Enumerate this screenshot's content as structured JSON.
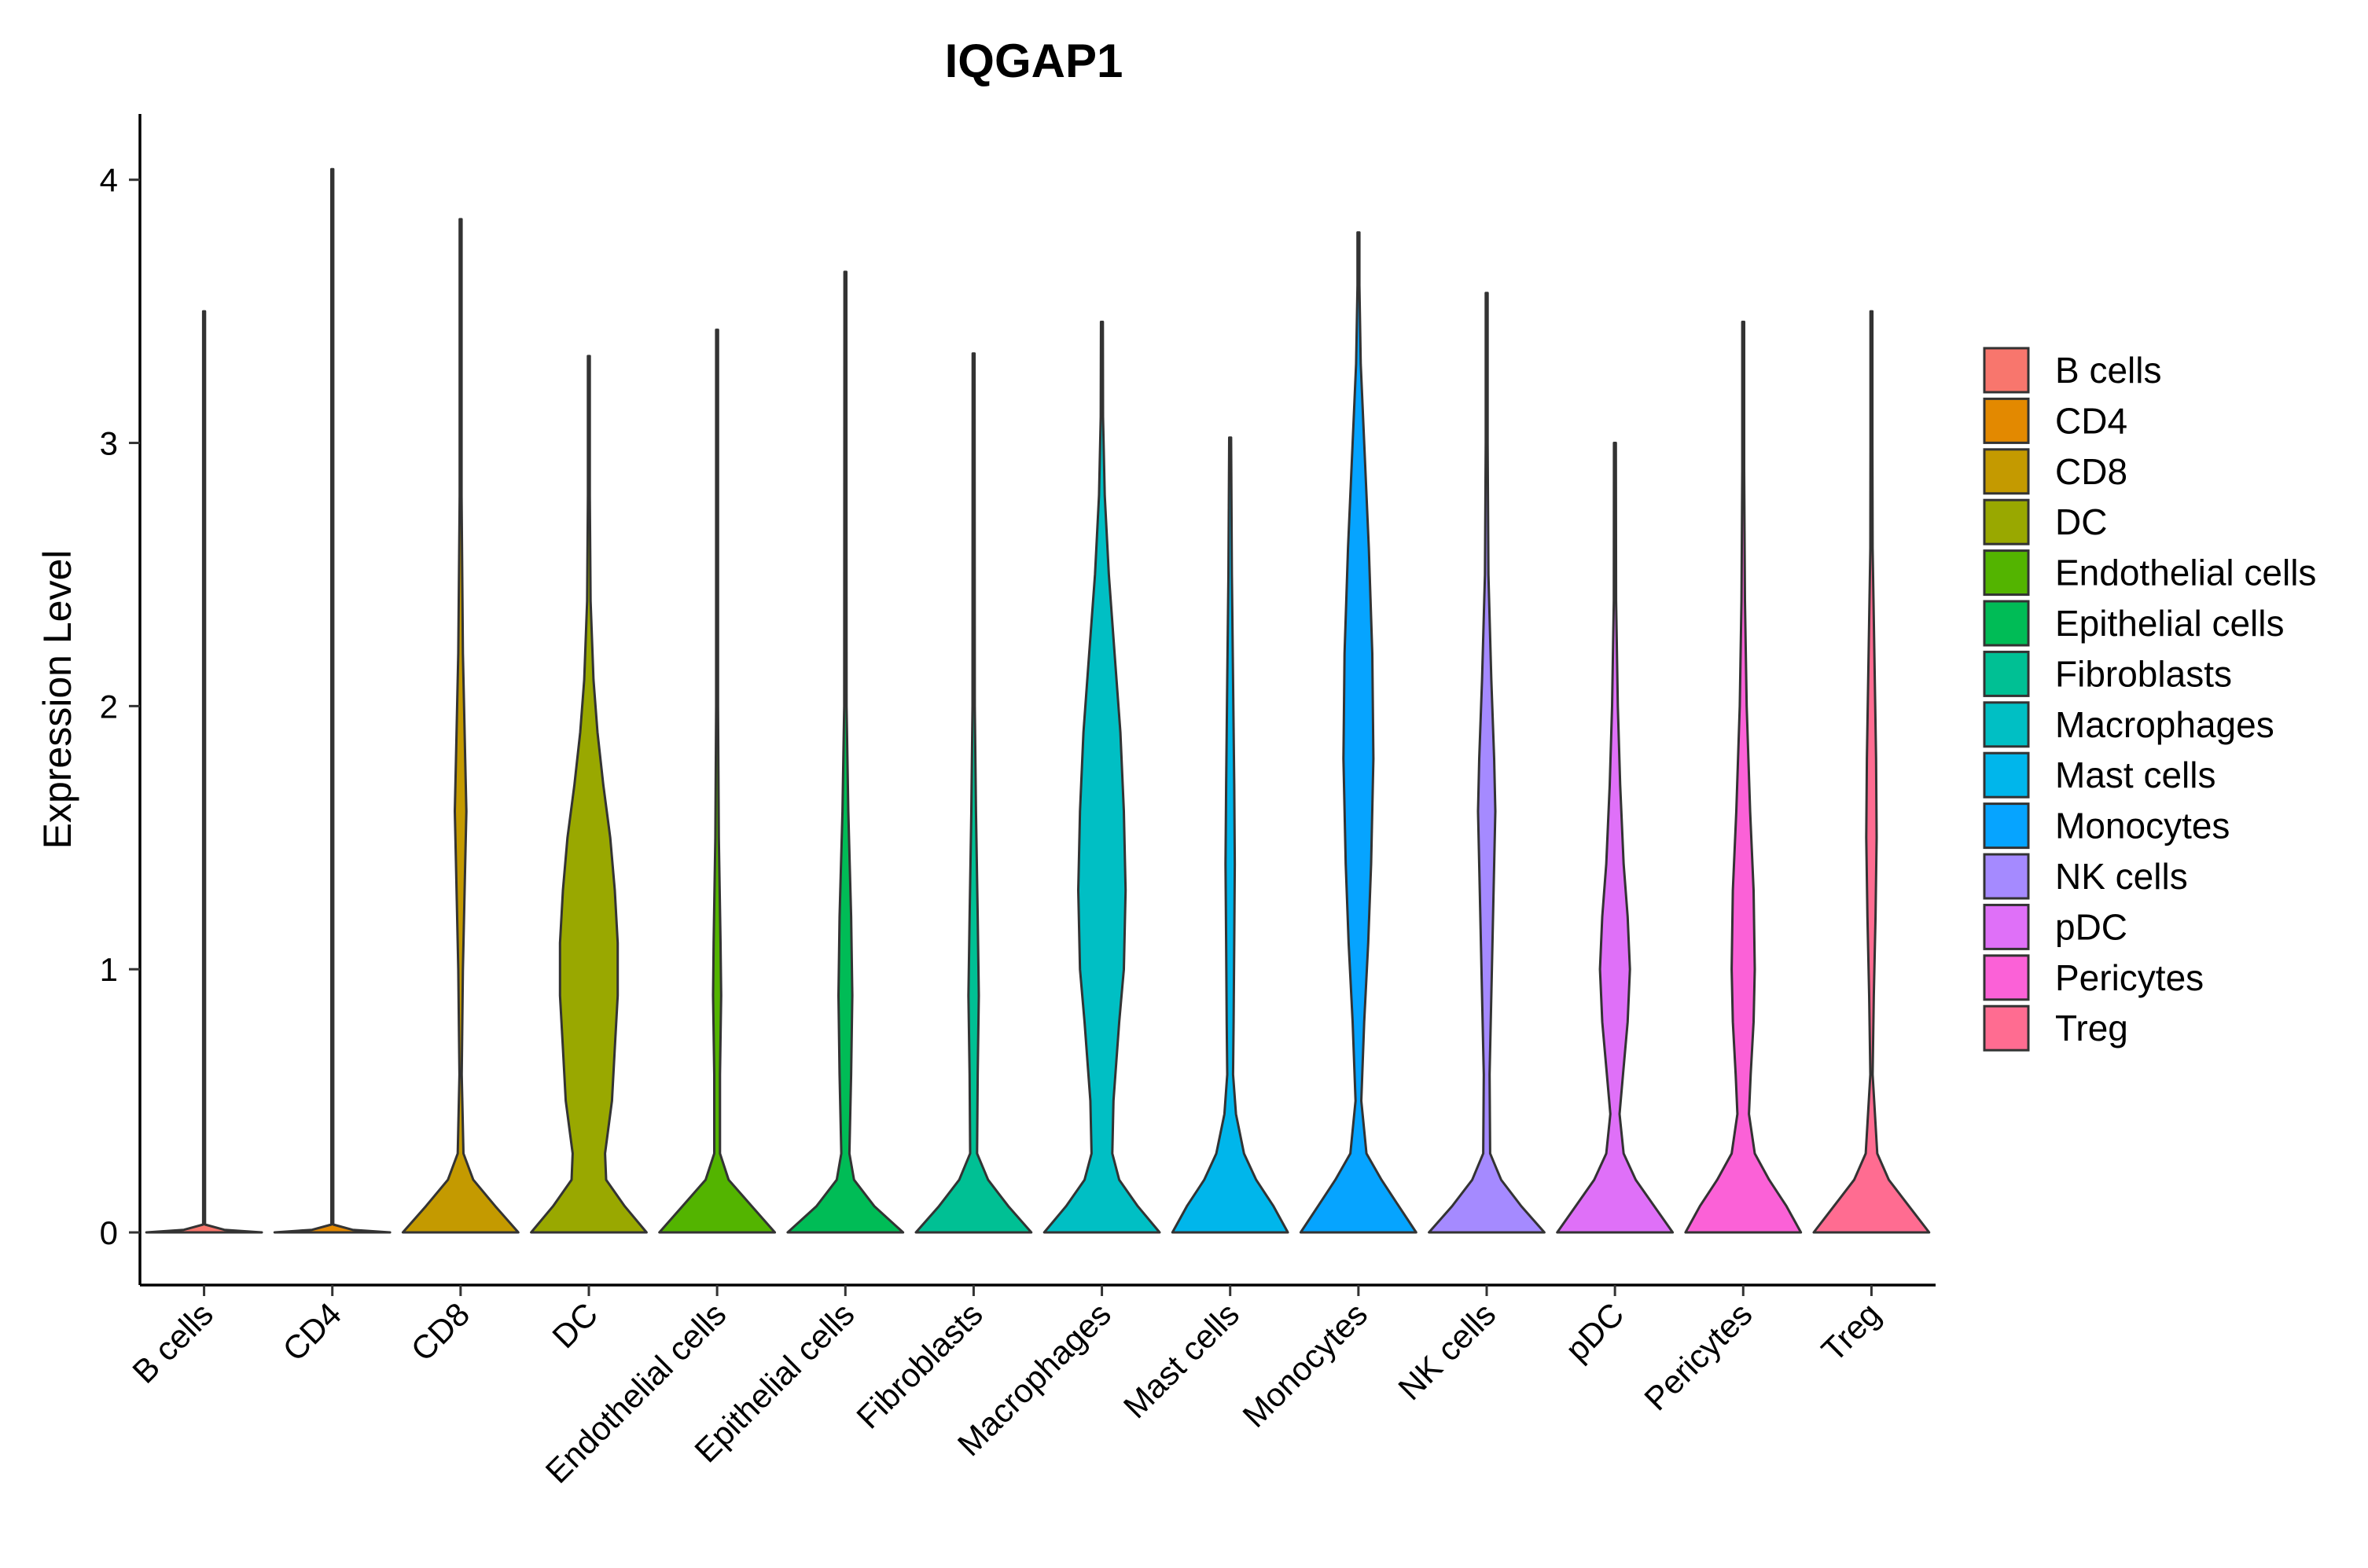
{
  "chart_data": {
    "type": "violin",
    "title": "IQGAP1",
    "xlabel": "",
    "ylabel": "Expression Level",
    "ylim": [
      -0.2,
      4.25
    ],
    "yticks": [
      0,
      1,
      2,
      3,
      4
    ],
    "grid": false,
    "legend_position": "right",
    "categories": [
      "B cells",
      "CD4",
      "CD8",
      "DC",
      "Endothelial cells",
      "Epithelial cells",
      "Fibroblasts",
      "Macrophages",
      "Mast cells",
      "Monocytes",
      "NK cells",
      "pDC",
      "Pericytes",
      "Treg"
    ],
    "series": [
      {
        "name": "B cells",
        "color": "#F8766D",
        "max": 3.5,
        "profile": [
          [
            0,
            1.0
          ],
          [
            0.01,
            0.35
          ],
          [
            0.03,
            0.01
          ],
          [
            3.5,
            0.01
          ]
        ]
      },
      {
        "name": "CD4",
        "color": "#E38900",
        "max": 4.04,
        "profile": [
          [
            0,
            1.0
          ],
          [
            0.01,
            0.35
          ],
          [
            0.03,
            0.01
          ],
          [
            4.04,
            0.01
          ]
        ]
      },
      {
        "name": "CD8",
        "color": "#C49A00",
        "max": 3.85,
        "profile": [
          [
            0,
            1.0
          ],
          [
            0.1,
            0.6
          ],
          [
            0.2,
            0.22
          ],
          [
            0.3,
            0.05
          ],
          [
            0.6,
            0.02
          ],
          [
            1.0,
            0.04
          ],
          [
            1.4,
            0.08
          ],
          [
            1.6,
            0.1
          ],
          [
            1.8,
            0.08
          ],
          [
            2.2,
            0.04
          ],
          [
            2.8,
            0.01
          ],
          [
            3.85,
            0.01
          ]
        ]
      },
      {
        "name": "DC",
        "color": "#99A800",
        "max": 3.33,
        "profile": [
          [
            0,
            1.0
          ],
          [
            0.1,
            0.62
          ],
          [
            0.2,
            0.3
          ],
          [
            0.3,
            0.28
          ],
          [
            0.5,
            0.4
          ],
          [
            0.7,
            0.45
          ],
          [
            0.9,
            0.5
          ],
          [
            1.1,
            0.5
          ],
          [
            1.3,
            0.45
          ],
          [
            1.5,
            0.37
          ],
          [
            1.7,
            0.25
          ],
          [
            1.9,
            0.15
          ],
          [
            2.1,
            0.08
          ],
          [
            2.4,
            0.03
          ],
          [
            2.8,
            0.01
          ],
          [
            3.33,
            0.01
          ]
        ]
      },
      {
        "name": "Endothelial cells",
        "color": "#53B400",
        "max": 3.43,
        "profile": [
          [
            0,
            1.0
          ],
          [
            0.1,
            0.6
          ],
          [
            0.2,
            0.2
          ],
          [
            0.3,
            0.05
          ],
          [
            0.6,
            0.05
          ],
          [
            0.9,
            0.07
          ],
          [
            1.1,
            0.06
          ],
          [
            1.5,
            0.03
          ],
          [
            2.0,
            0.015
          ],
          [
            3.43,
            0.01
          ]
        ]
      },
      {
        "name": "Epithelial cells",
        "color": "#00BC56",
        "max": 3.65,
        "profile": [
          [
            0,
            1.0
          ],
          [
            0.1,
            0.5
          ],
          [
            0.2,
            0.15
          ],
          [
            0.3,
            0.07
          ],
          [
            0.6,
            0.1
          ],
          [
            0.9,
            0.12
          ],
          [
            1.2,
            0.1
          ],
          [
            1.6,
            0.05
          ],
          [
            2.0,
            0.02
          ],
          [
            3.65,
            0.01
          ]
        ]
      },
      {
        "name": "Fibroblasts",
        "color": "#00C094",
        "max": 3.34,
        "profile": [
          [
            0,
            1.0
          ],
          [
            0.1,
            0.6
          ],
          [
            0.2,
            0.25
          ],
          [
            0.3,
            0.06
          ],
          [
            0.6,
            0.07
          ],
          [
            0.9,
            0.09
          ],
          [
            1.2,
            0.07
          ],
          [
            1.6,
            0.04
          ],
          [
            2.0,
            0.02
          ],
          [
            3.34,
            0.01
          ]
        ]
      },
      {
        "name": "Macrophages",
        "color": "#00BFC4",
        "max": 3.46,
        "profile": [
          [
            0,
            1.0
          ],
          [
            0.1,
            0.62
          ],
          [
            0.2,
            0.3
          ],
          [
            0.3,
            0.18
          ],
          [
            0.5,
            0.2
          ],
          [
            0.8,
            0.3
          ],
          [
            1.0,
            0.38
          ],
          [
            1.3,
            0.41
          ],
          [
            1.6,
            0.38
          ],
          [
            1.9,
            0.32
          ],
          [
            2.2,
            0.22
          ],
          [
            2.5,
            0.12
          ],
          [
            2.8,
            0.05
          ],
          [
            3.1,
            0.02
          ],
          [
            3.46,
            0.01
          ]
        ]
      },
      {
        "name": "Mast cells",
        "color": "#00B6EB",
        "max": 3.02,
        "profile": [
          [
            0,
            1.0
          ],
          [
            0.1,
            0.75
          ],
          [
            0.2,
            0.45
          ],
          [
            0.3,
            0.24
          ],
          [
            0.45,
            0.1
          ],
          [
            0.6,
            0.05
          ],
          [
            0.8,
            0.06
          ],
          [
            1.1,
            0.07
          ],
          [
            1.4,
            0.08
          ],
          [
            1.7,
            0.07
          ],
          [
            2.1,
            0.05
          ],
          [
            2.5,
            0.03
          ],
          [
            3.02,
            0.01
          ]
        ]
      },
      {
        "name": "Monocytes",
        "color": "#06A4FF",
        "max": 3.8,
        "profile": [
          [
            0,
            1.0
          ],
          [
            0.1,
            0.7
          ],
          [
            0.2,
            0.4
          ],
          [
            0.3,
            0.14
          ],
          [
            0.5,
            0.05
          ],
          [
            0.8,
            0.1
          ],
          [
            1.1,
            0.17
          ],
          [
            1.4,
            0.22
          ],
          [
            1.8,
            0.26
          ],
          [
            2.2,
            0.24
          ],
          [
            2.6,
            0.18
          ],
          [
            3.0,
            0.1
          ],
          [
            3.3,
            0.04
          ],
          [
            3.6,
            0.015
          ],
          [
            3.8,
            0.01
          ]
        ]
      },
      {
        "name": "NK cells",
        "color": "#A58AFF",
        "max": 3.57,
        "profile": [
          [
            0,
            1.0
          ],
          [
            0.1,
            0.6
          ],
          [
            0.2,
            0.25
          ],
          [
            0.3,
            0.06
          ],
          [
            0.6,
            0.05
          ],
          [
            0.9,
            0.08
          ],
          [
            1.3,
            0.12
          ],
          [
            1.6,
            0.15
          ],
          [
            1.8,
            0.13
          ],
          [
            2.1,
            0.08
          ],
          [
            2.5,
            0.03
          ],
          [
            3.0,
            0.015
          ],
          [
            3.57,
            0.01
          ]
        ]
      },
      {
        "name": "pDC",
        "color": "#DF70F8",
        "max": 3.0,
        "profile": [
          [
            0,
            1.0
          ],
          [
            0.1,
            0.68
          ],
          [
            0.2,
            0.36
          ],
          [
            0.3,
            0.15
          ],
          [
            0.45,
            0.08
          ],
          [
            0.6,
            0.14
          ],
          [
            0.8,
            0.22
          ],
          [
            1.0,
            0.26
          ],
          [
            1.2,
            0.22
          ],
          [
            1.4,
            0.15
          ],
          [
            1.7,
            0.09
          ],
          [
            2.0,
            0.05
          ],
          [
            2.4,
            0.02
          ],
          [
            3.0,
            0.01
          ]
        ]
      },
      {
        "name": "Pericytes",
        "color": "#FB61D7",
        "max": 3.46,
        "profile": [
          [
            0,
            1.0
          ],
          [
            0.1,
            0.75
          ],
          [
            0.2,
            0.45
          ],
          [
            0.3,
            0.2
          ],
          [
            0.45,
            0.1
          ],
          [
            0.6,
            0.13
          ],
          [
            0.8,
            0.18
          ],
          [
            1.0,
            0.2
          ],
          [
            1.3,
            0.18
          ],
          [
            1.6,
            0.12
          ],
          [
            2.0,
            0.06
          ],
          [
            2.4,
            0.03
          ],
          [
            2.9,
            0.01
          ],
          [
            3.46,
            0.01
          ]
        ]
      },
      {
        "name": "Treg",
        "color": "#FF6C91",
        "max": 3.5,
        "profile": [
          [
            0,
            1.0
          ],
          [
            0.1,
            0.65
          ],
          [
            0.2,
            0.3
          ],
          [
            0.3,
            0.1
          ],
          [
            0.6,
            0.02
          ],
          [
            0.9,
            0.04
          ],
          [
            1.2,
            0.07
          ],
          [
            1.5,
            0.09
          ],
          [
            1.8,
            0.08
          ],
          [
            2.2,
            0.05
          ],
          [
            2.6,
            0.02
          ],
          [
            3.0,
            0.01
          ],
          [
            3.5,
            0.01
          ]
        ]
      }
    ]
  }
}
